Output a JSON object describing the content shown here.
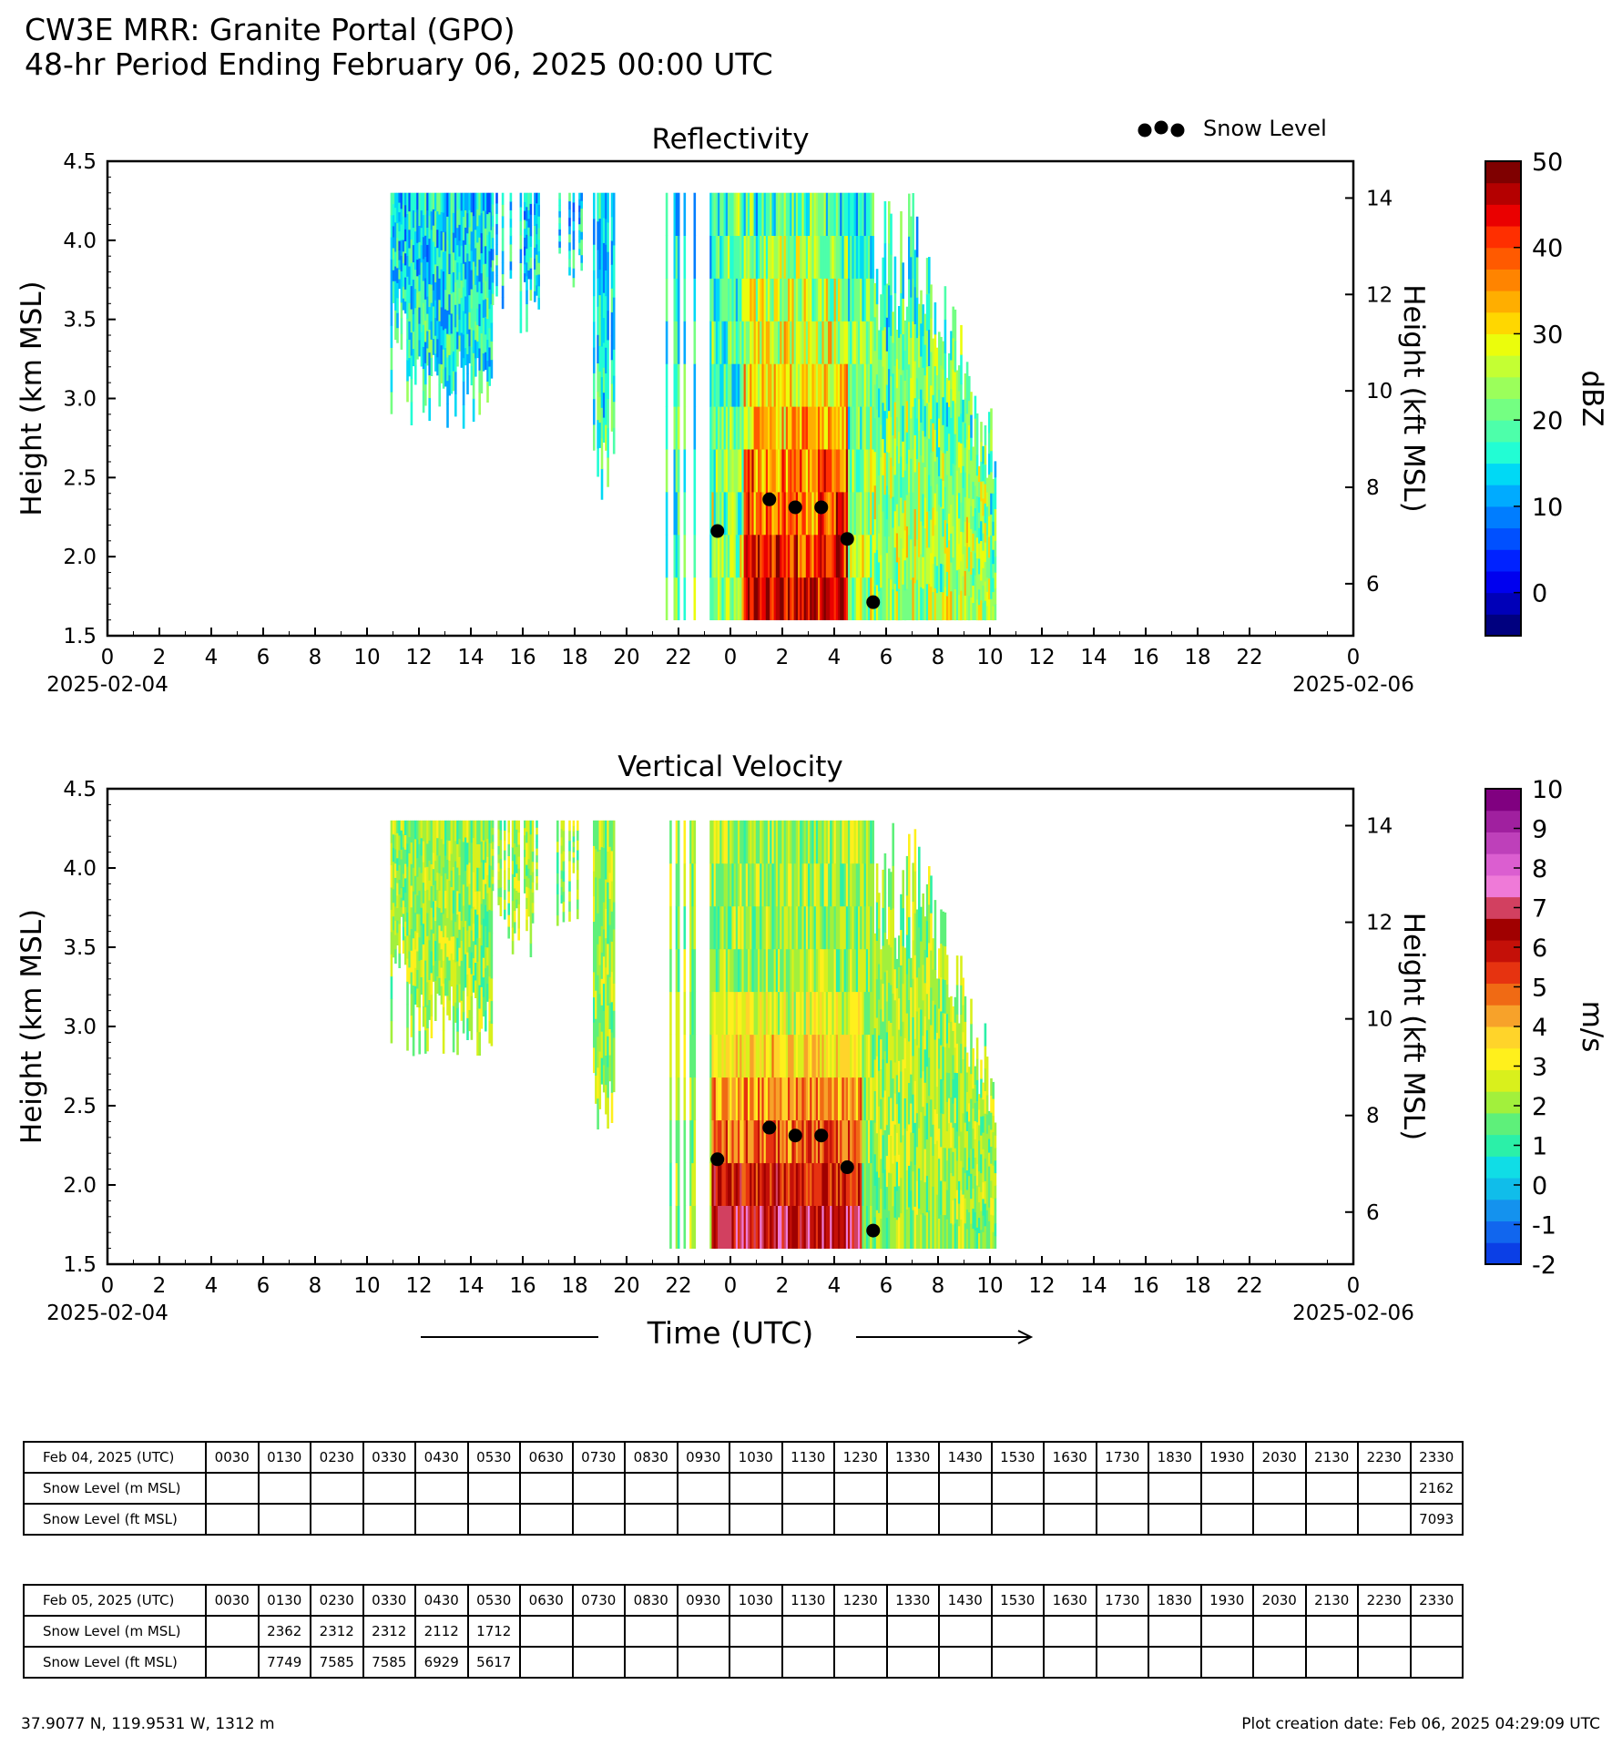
{
  "header": {
    "title": "CW3E MRR: Granite Portal (GPO)",
    "subtitle": "48-hr Period Ending February 06, 2025 00:00 UTC"
  },
  "chart_data": [
    {
      "type": "heatmap",
      "title": "Reflectivity",
      "ylabel": "Height (km MSL)",
      "ylabel_right": "Height (kft MSL)",
      "ylim": [
        1.5,
        4.5
      ],
      "y_ticks": [
        "1.5",
        "2.0",
        "2.5",
        "3.0",
        "3.5",
        "4.0",
        "4.5"
      ],
      "y_right_ticks": [
        "6",
        "8",
        "10",
        "12",
        "14"
      ],
      "x_tick_labels": [
        "0",
        "2",
        "4",
        "6",
        "8",
        "10",
        "12",
        "14",
        "16",
        "18",
        "20",
        "22",
        "0",
        "2",
        "4",
        "6",
        "8",
        "10",
        "12",
        "14",
        "16",
        "18",
        "22",
        "0"
      ],
      "x_date_start": "2025-02-04",
      "x_date_end": "2025-02-06",
      "legend": "Snow Level",
      "legend_placement": "top-right",
      "colorbar_label": "dBZ",
      "colorbar_ticks": [
        "0",
        "10",
        "20",
        "30",
        "40",
        "50"
      ],
      "colorbar_range": [
        -5,
        50
      ],
      "colorbar_colors": [
        "#00007f",
        "#0000b8",
        "#0000ef",
        "#0022ff",
        "#0050ff",
        "#007dff",
        "#00abff",
        "#00d9f5",
        "#22fdd4",
        "#4dffaa",
        "#74ff82",
        "#9bff5b",
        "#c4ff33",
        "#ebfd0c",
        "#ffd700",
        "#ffae00",
        "#ff8400",
        "#ff5a00",
        "#ff2f00",
        "#ea0000",
        "#b40000",
        "#7f0000"
      ],
      "snow_level_points": [
        {
          "time": "2025-02-04 23:30",
          "height_km": 2.162
        },
        {
          "time": "2025-02-05 01:30",
          "height_km": 2.362
        },
        {
          "time": "2025-02-05 02:30",
          "height_km": 2.312
        },
        {
          "time": "2025-02-05 03:30",
          "height_km": 2.312
        },
        {
          "time": "2025-02-05 04:30",
          "height_km": 2.112
        },
        {
          "time": "2025-02-05 05:30",
          "height_km": 1.712
        }
      ]
    },
    {
      "type": "heatmap",
      "title": "Vertical Velocity",
      "ylabel": "Height (km MSL)",
      "ylabel_right": "Height (kft MSL)",
      "ylim": [
        1.5,
        4.5
      ],
      "y_ticks": [
        "1.5",
        "2.0",
        "2.5",
        "3.0",
        "3.5",
        "4.0",
        "4.5"
      ],
      "y_right_ticks": [
        "6",
        "8",
        "10",
        "12",
        "14"
      ],
      "x_tick_labels": [
        "0",
        "2",
        "4",
        "6",
        "8",
        "10",
        "12",
        "14",
        "16",
        "18",
        "20",
        "22",
        "0",
        "2",
        "4",
        "6",
        "8",
        "10",
        "12",
        "14",
        "16",
        "18",
        "22",
        "0"
      ],
      "x_date_start": "2025-02-04",
      "x_date_end": "2025-02-06",
      "xlabel": "Time (UTC)",
      "colorbar_label": "m/s",
      "colorbar_ticks": [
        "-2",
        "-1",
        "0",
        "1",
        "2",
        "3",
        "4",
        "5",
        "6",
        "7",
        "8",
        "9",
        "10"
      ],
      "colorbar_range": [
        -2,
        10
      ],
      "colorbar_colors": [
        "#0b3fe6",
        "#1166ee",
        "#1492ee",
        "#10bdea",
        "#10dde6",
        "#2bf0a8",
        "#5ef07a",
        "#a2f03c",
        "#d9f01c",
        "#fff01c",
        "#ffd42a",
        "#f7a22a",
        "#f06a14",
        "#e63310",
        "#c41008",
        "#a00000",
        "#d24060",
        "#ef7ad8",
        "#db5ed0",
        "#be40ba",
        "#a0209f",
        "#800080"
      ],
      "snow_level_points": [
        {
          "time": "2025-02-04 23:30",
          "height_km": 2.162
        },
        {
          "time": "2025-02-05 01:30",
          "height_km": 2.362
        },
        {
          "time": "2025-02-05 02:30",
          "height_km": 2.312
        },
        {
          "time": "2025-02-05 03:30",
          "height_km": 2.312
        },
        {
          "time": "2025-02-05 04:30",
          "height_km": 2.112
        },
        {
          "time": "2025-02-05 05:30",
          "height_km": 1.712
        }
      ]
    }
  ],
  "tables": {
    "times": [
      "0030",
      "0130",
      "0230",
      "0330",
      "0430",
      "0530",
      "0630",
      "0730",
      "0830",
      "0930",
      "1030",
      "1130",
      "1230",
      "1330",
      "1430",
      "1530",
      "1630",
      "1730",
      "1830",
      "1930",
      "2030",
      "2130",
      "2230",
      "2330"
    ],
    "day1": {
      "date_label": "Feb 04, 2025 (UTC)",
      "m_label": "Snow Level (m MSL)",
      "ft_label": "Snow Level (ft MSL)",
      "m": [
        "",
        "",
        "",
        "",
        "",
        "",
        "",
        "",
        "",
        "",
        "",
        "",
        "",
        "",
        "",
        "",
        "",
        "",
        "",
        "",
        "",
        "",
        "",
        "2162"
      ],
      "ft": [
        "",
        "",
        "",
        "",
        "",
        "",
        "",
        "",
        "",
        "",
        "",
        "",
        "",
        "",
        "",
        "",
        "",
        "",
        "",
        "",
        "",
        "",
        "",
        "7093"
      ]
    },
    "day2": {
      "date_label": "Feb 05, 2025 (UTC)",
      "m_label": "Snow Level (m MSL)",
      "ft_label": "Snow Level (ft MSL)",
      "m": [
        "",
        "2362",
        "2312",
        "2312",
        "2112",
        "1712",
        "",
        "",
        "",
        "",
        "",
        "",
        "",
        "",
        "",
        "",
        "",
        "",
        "",
        "",
        "",
        "",
        "",
        ""
      ],
      "ft": [
        "",
        "7749",
        "7585",
        "7585",
        "6929",
        "5617",
        "",
        "",
        "",
        "",
        "",
        "",
        "",
        "",
        "",
        "",
        "",
        "",
        "",
        "",
        "",
        "",
        "",
        ""
      ]
    }
  },
  "footer": {
    "location": "37.9077 N, 119.9531 W, 1312 m",
    "creation": "Plot creation date: Feb 06, 2025 04:29:09 UTC"
  }
}
